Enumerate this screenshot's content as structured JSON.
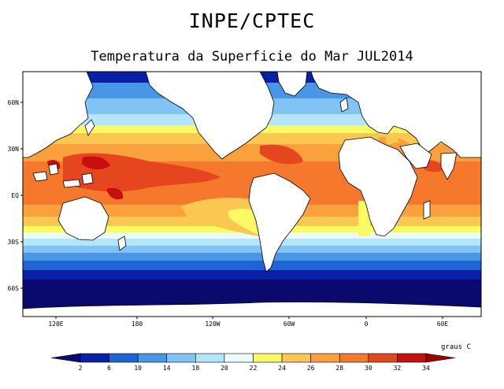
{
  "header": {
    "title": "INPE/CPTEC",
    "subtitle": "Temperatura da Superficie do Mar JUL2014"
  },
  "axes": {
    "x_ticks": [
      "120E",
      "180",
      "120W",
      "60W",
      "0",
      "60E"
    ],
    "y_ticks": [
      "60N",
      "30N",
      "EQ",
      "30S",
      "60S"
    ]
  },
  "colorbar": {
    "units": "graus C",
    "labels": [
      "2",
      "6",
      "10",
      "14",
      "18",
      "20",
      "22",
      "24",
      "26",
      "28",
      "30",
      "32",
      "34"
    ],
    "colors": [
      "#0a0a6e",
      "#0a1fa8",
      "#1e64d2",
      "#4a96e6",
      "#82c3f5",
      "#b4e6fa",
      "#ebfafa",
      "#fafa64",
      "#fac850",
      "#faa03c",
      "#f5782d",
      "#e6461e",
      "#c80f0f",
      "#9b0000"
    ]
  },
  "colors": {
    "land": "#ffffff",
    "background": "#ffffff"
  }
}
